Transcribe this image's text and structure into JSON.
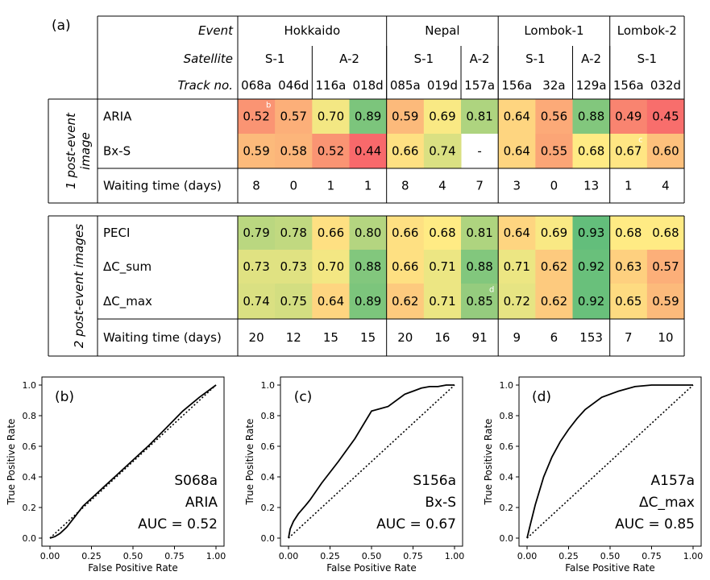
{
  "table": {
    "panel_label": "(a)",
    "header_labels": {
      "event": "Event",
      "satellite": "Satellite",
      "track": "Track no."
    },
    "events": [
      {
        "name": "Hokkaido",
        "span": 4
      },
      {
        "name": "Nepal",
        "span": 3
      },
      {
        "name": "Lombok-1",
        "span": 3
      },
      {
        "name": "Lombok-2",
        "span": 2
      }
    ],
    "satellites": [
      {
        "name": "S-1",
        "span": 2
      },
      {
        "name": "A-2",
        "span": 2
      },
      {
        "name": "S-1",
        "span": 2
      },
      {
        "name": "A-2",
        "span": 1
      },
      {
        "name": "S-1",
        "span": 2
      },
      {
        "name": "A-2",
        "span": 1
      },
      {
        "name": "S-1",
        "span": 2
      }
    ],
    "tracks": [
      "068a",
      "046d",
      "116a",
      "018d",
      "085a",
      "019d",
      "157a",
      "156a",
      "32a",
      "129a",
      "156a",
      "032d"
    ],
    "group1": {
      "label_line1": "1 post-event",
      "label_line2": "image",
      "rows": [
        {
          "name": "ARIA",
          "values": [
            "0.52",
            "0.57",
            "0.70",
            "0.89",
            "0.59",
            "0.69",
            "0.81",
            "0.64",
            "0.56",
            "0.88",
            "0.49",
            "0.45"
          ]
        },
        {
          "name": "Bx-S",
          "values": [
            "0.59",
            "0.58",
            "0.52",
            "0.44",
            "0.66",
            "0.74",
            "-",
            "0.64",
            "0.55",
            "0.68",
            "0.67",
            "0.60"
          ]
        }
      ],
      "waiting": {
        "name": "Waiting time (days)",
        "values": [
          "8",
          "0",
          "1",
          "1",
          "8",
          "4",
          "7",
          "3",
          "0",
          "13",
          "1",
          "4"
        ]
      }
    },
    "group2": {
      "label": "2 post-event images",
      "rows": [
        {
          "name": "PECI",
          "values": [
            "0.79",
            "0.78",
            "0.66",
            "0.80",
            "0.66",
            "0.68",
            "0.81",
            "0.64",
            "0.69",
            "0.93",
            "0.68",
            "0.68"
          ]
        },
        {
          "name": "ΔC_sum",
          "values": [
            "0.73",
            "0.73",
            "0.70",
            "0.88",
            "0.66",
            "0.71",
            "0.88",
            "0.71",
            "0.62",
            "0.92",
            "0.63",
            "0.57"
          ]
        },
        {
          "name": "ΔC_max",
          "values": [
            "0.74",
            "0.75",
            "0.64",
            "0.89",
            "0.62",
            "0.71",
            "0.85",
            "0.72",
            "0.62",
            "0.92",
            "0.65",
            "0.59"
          ]
        }
      ],
      "waiting": {
        "name": "Waiting time (days)",
        "values": [
          "20",
          "12",
          "15",
          "15",
          "20",
          "16",
          "91",
          "9",
          "6",
          "153",
          "7",
          "10"
        ]
      }
    },
    "markers": [
      {
        "text": "b",
        "row": "ARIA",
        "col": 0
      },
      {
        "text": "c",
        "row": "Bx-S",
        "col": 10
      },
      {
        "text": "d",
        "row": "ΔC_max",
        "col": 6
      }
    ],
    "colors": {
      "low": "#f8696b",
      "mid": "#ffeb84",
      "high": "#63be7b",
      "border": "#000000"
    }
  },
  "chart_data": [
    {
      "type": "line",
      "panel": "(b)",
      "xlabel": "False Positive Rate",
      "ylabel": "True Positive Rate",
      "xlim": [
        0,
        1
      ],
      "ylim": [
        0,
        1
      ],
      "xticks": [
        "0.00",
        "0.25",
        "0.50",
        "0.75",
        "1.00"
      ],
      "yticks": [
        "0.0",
        "0.2",
        "0.4",
        "0.6",
        "0.8",
        "1.0"
      ],
      "annotation": [
        "S068a",
        "ARIA",
        "AUC = 0.52"
      ],
      "series": [
        {
          "style": "solid",
          "x": [
            0,
            0.03,
            0.06,
            0.1,
            0.15,
            0.2,
            0.3,
            0.4,
            0.5,
            0.6,
            0.7,
            0.8,
            0.9,
            1.0
          ],
          "y": [
            0,
            0.01,
            0.03,
            0.07,
            0.14,
            0.21,
            0.31,
            0.41,
            0.51,
            0.61,
            0.72,
            0.83,
            0.92,
            1.0
          ]
        },
        {
          "style": "dotted",
          "x": [
            0,
            1
          ],
          "y": [
            0,
            1
          ]
        }
      ]
    },
    {
      "type": "line",
      "panel": "(c)",
      "xlabel": "False Positive Rate",
      "ylabel": "True Positive Rate",
      "xlim": [
        0,
        1
      ],
      "ylim": [
        0,
        1
      ],
      "xticks": [
        "0.00",
        "0.25",
        "0.50",
        "0.75",
        "1.00"
      ],
      "yticks": [
        "0.0",
        "0.2",
        "0.4",
        "0.6",
        "0.8",
        "1.0"
      ],
      "annotation": [
        "S156a",
        "Bx-S",
        "AUC = 0.67"
      ],
      "series": [
        {
          "style": "solid",
          "x": [
            0,
            0.01,
            0.03,
            0.06,
            0.1,
            0.13,
            0.2,
            0.3,
            0.4,
            0.5,
            0.6,
            0.7,
            0.75,
            0.8,
            0.85,
            0.9,
            0.95,
            1.0
          ],
          "y": [
            0,
            0.06,
            0.11,
            0.16,
            0.21,
            0.25,
            0.36,
            0.5,
            0.65,
            0.83,
            0.86,
            0.94,
            0.96,
            0.98,
            0.99,
            0.99,
            1.0,
            1.0
          ]
        },
        {
          "style": "dotted",
          "x": [
            0,
            1
          ],
          "y": [
            0,
            1
          ]
        }
      ]
    },
    {
      "type": "line",
      "panel": "(d)",
      "xlabel": "False Positive Rate",
      "ylabel": "True Positive Rate",
      "xlim": [
        0,
        1
      ],
      "ylim": [
        0,
        1
      ],
      "xticks": [
        "0.00",
        "0.25",
        "0.50",
        "0.75",
        "1.00"
      ],
      "yticks": [
        "0.0",
        "0.2",
        "0.4",
        "0.6",
        "0.8",
        "1.0"
      ],
      "annotation": [
        "A157a",
        "ΔC_max",
        "AUC = 0.85"
      ],
      "series": [
        {
          "style": "solid",
          "x": [
            0,
            0.02,
            0.05,
            0.1,
            0.15,
            0.2,
            0.25,
            0.3,
            0.35,
            0.45,
            0.55,
            0.65,
            0.75,
            0.85,
            1.0
          ],
          "y": [
            0,
            0.09,
            0.22,
            0.4,
            0.53,
            0.63,
            0.71,
            0.78,
            0.84,
            0.92,
            0.96,
            0.99,
            1.0,
            1.0,
            1.0
          ]
        },
        {
          "style": "dotted",
          "x": [
            0,
            1
          ],
          "y": [
            0,
            1
          ]
        }
      ]
    }
  ]
}
